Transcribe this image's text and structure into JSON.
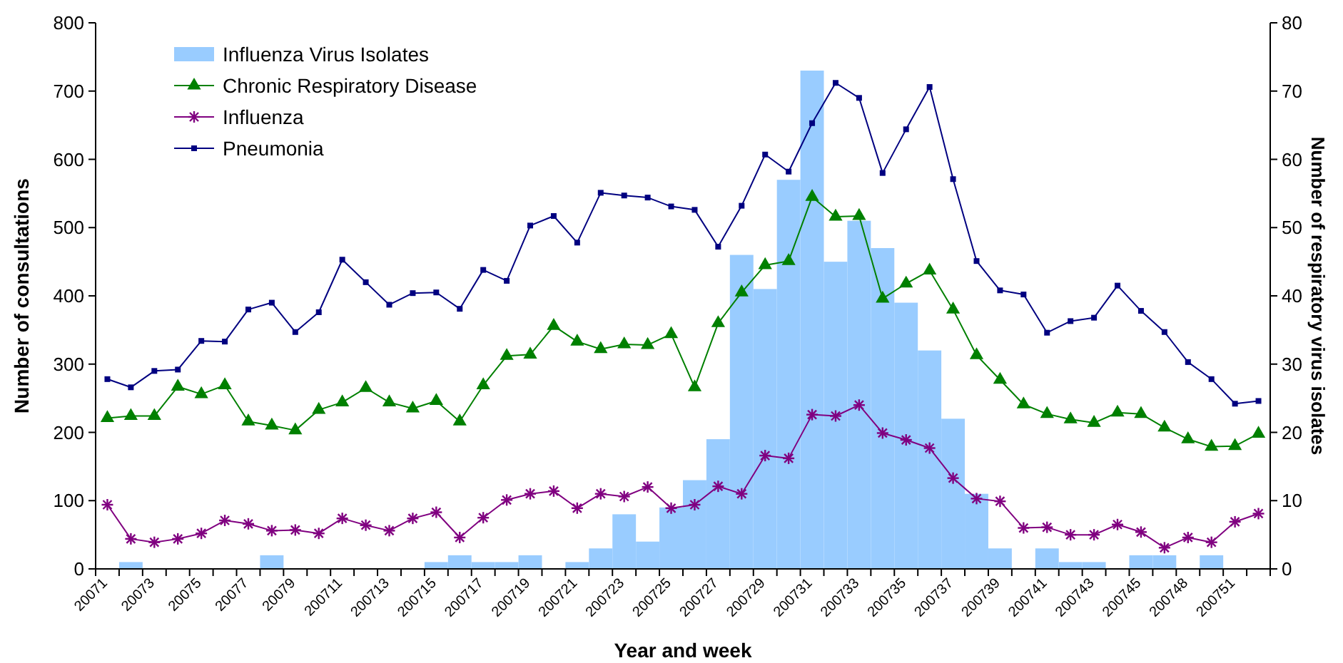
{
  "chart_data": {
    "type": "line",
    "xlabel": "Year and week",
    "ylabel": "Number of consultations",
    "y2label": "Number of respiratory virus isolates",
    "categories": [
      "20071",
      null,
      "20073",
      null,
      "20075",
      null,
      "20077",
      null,
      "20079",
      null,
      "200711",
      null,
      "200713",
      null,
      "200715",
      null,
      "200717",
      null,
      "200719",
      null,
      "200721",
      null,
      "200723",
      null,
      "200725",
      null,
      "200727",
      null,
      "200729",
      null,
      "200731",
      null,
      "200733",
      null,
      "200735",
      null,
      "200737",
      null,
      "200739",
      null,
      "200741",
      null,
      "200743",
      null,
      "200745",
      null,
      "200748",
      null,
      "200751",
      null
    ],
    "ylim": [
      0,
      800
    ],
    "yticks": [
      0,
      100,
      200,
      300,
      400,
      500,
      600,
      700,
      800
    ],
    "y2lim": [
      0,
      80
    ],
    "y2ticks": [
      0,
      10,
      20,
      30,
      40,
      50,
      60,
      70,
      80
    ],
    "grid": false,
    "legend": "top left",
    "series": [
      {
        "name": "Influenza Virus Isolates",
        "type": "bar",
        "axis": "y2",
        "color": "#99ccff",
        "values": [
          0,
          1,
          0,
          0,
          0,
          0,
          0,
          2,
          0,
          0,
          0,
          0,
          0,
          0,
          1,
          2,
          1,
          1,
          2,
          0,
          1,
          3,
          8,
          4,
          9,
          13,
          19,
          46,
          41,
          57,
          73,
          45,
          51,
          47,
          39,
          32,
          22,
          11,
          3,
          0,
          3,
          1,
          1,
          0,
          2,
          2,
          0,
          2,
          0,
          0
        ]
      },
      {
        "name": "Chronic Respiratory Disease",
        "marker": "triangle",
        "color": "#008000",
        "values": [
          221,
          224,
          224,
          267,
          256,
          269,
          216,
          210,
          203,
          233,
          244,
          265,
          244,
          235,
          246,
          216,
          269,
          312,
          314,
          356,
          333,
          322,
          329,
          328,
          344,
          266,
          360,
          405,
          445,
          451,
          545,
          516,
          517,
          396,
          418,
          437,
          380,
          313,
          277,
          241,
          227,
          219,
          214,
          229,
          227,
          207,
          190,
          179,
          180,
          198
        ]
      },
      {
        "name": "Influenza",
        "marker": "cross",
        "color": "#800080",
        "values": [
          94,
          44,
          39,
          44,
          52,
          71,
          66,
          56,
          57,
          52,
          74,
          64,
          56,
          74,
          83,
          46,
          75,
          101,
          110,
          114,
          89,
          110,
          106,
          120,
          89,
          94,
          121,
          110,
          166,
          162,
          226,
          224,
          240,
          199,
          189,
          177,
          133,
          103,
          99,
          60,
          61,
          50,
          50,
          65,
          54,
          31,
          46,
          39,
          69,
          81
        ]
      },
      {
        "name": "Pneumonia",
        "marker": "square",
        "color": "#000080",
        "values": [
          278,
          266,
          290,
          292,
          334,
          333,
          380,
          390,
          347,
          376,
          453,
          420,
          387,
          404,
          405,
          381,
          438,
          422,
          503,
          517,
          478,
          551,
          547,
          544,
          531,
          526,
          472,
          532,
          607,
          582,
          653,
          712,
          690,
          580,
          644,
          706,
          571,
          451,
          408,
          402,
          346,
          363,
          368,
          415,
          378,
          347,
          303,
          278,
          242,
          246
        ]
      }
    ]
  }
}
